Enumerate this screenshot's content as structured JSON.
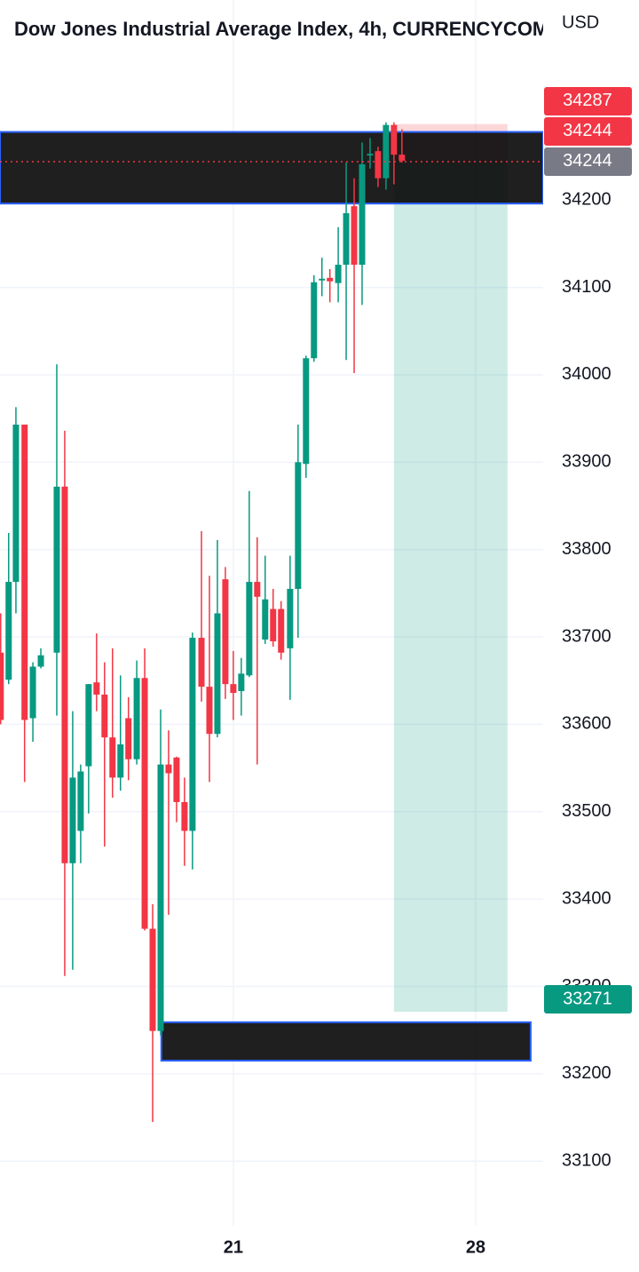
{
  "chart_data": {
    "type": "candlestick",
    "title": "Dow Jones Industrial Average Index, 4h, CURRENCYCOM",
    "currency": "USD",
    "x": [
      14.28,
      14.51,
      14.72,
      14.97,
      15.21,
      15.44,
      15.9,
      16.13,
      16.36,
      16.59,
      16.82,
      17.05,
      17.28,
      17.51,
      17.74,
      17.97,
      18.21,
      18.44,
      18.67,
      18.9,
      19.13,
      19.36,
      19.59,
      19.82,
      20.08,
      20.31,
      20.54,
      20.77,
      21,
      21.23,
      21.46,
      21.69,
      21.92,
      22.15,
      22.38,
      22.64,
      22.87,
      23.1,
      23.33,
      23.56,
      23.79,
      24.03,
      24.26,
      24.49,
      24.72,
      24.95,
      25.18,
      25.41,
      25.64,
      25.87
    ],
    "open": [
      33682,
      33651,
      33763,
      33943,
      33607,
      33666,
      33682,
      33872,
      33441,
      33478,
      33552,
      33648,
      33634,
      33585,
      33539,
      33607,
      33560,
      33653,
      33366,
      33249,
      33554,
      33562,
      33511,
      33478,
      33699,
      33643,
      33589,
      33766,
      33646,
      33638,
      33656,
      33763,
      33697,
      33732,
      33732,
      33687,
      33755,
      33898,
      34019,
      34108,
      34111,
      34105,
      34126,
      34193,
      34126,
      34251,
      34256,
      34225,
      34286,
      34252
    ],
    "high": [
      33727,
      33819,
      33963,
      33943,
      33671,
      33687,
      34012,
      33936,
      33615,
      33554,
      33646,
      33704,
      33671,
      33687,
      33656,
      33631,
      33673,
      33687,
      33394,
      33617,
      33593,
      33563,
      33539,
      33705,
      33821,
      33770,
      33811,
      33780,
      33684,
      33676,
      33867,
      33814,
      33793,
      33755,
      33741,
      33793,
      33943,
      34022,
      34114,
      34134,
      34121,
      34169,
      34243,
      34225,
      34266,
      34271,
      34261,
      34289,
      34289,
      34281
    ],
    "low": [
      33600,
      33646,
      33727,
      33534,
      33580,
      33664,
      33610,
      33312,
      33319,
      33441,
      33498,
      33615,
      33460,
      33516,
      33524,
      33536,
      33554,
      33364,
      33145,
      33244,
      33382,
      33488,
      33438,
      33434,
      33626,
      33534,
      33585,
      33629,
      33605,
      33610,
      33654,
      33554,
      33692,
      33689,
      33674,
      33628,
      33699,
      33882,
      34015,
      34090,
      34083,
      34083,
      34017,
      34002,
      34080,
      34236,
      34215,
      34212,
      34218,
      34243
    ],
    "close": [
      33605,
      33763,
      33943,
      33605,
      33666,
      33679,
      33872,
      33441,
      33539,
      33546,
      33646,
      33634,
      33585,
      33539,
      33577,
      33560,
      33653,
      33366,
      33249,
      33554,
      33544,
      33511,
      33478,
      33699,
      33643,
      33589,
      33727,
      33646,
      33636,
      33658,
      33763,
      33746,
      33743,
      33695,
      33682,
      33755,
      33900,
      34019,
      34106,
      34110,
      34107,
      34126,
      34185,
      34126,
      34241,
      34253,
      34225,
      34286,
      34252,
      34245
    ],
    "up_color": "#089981",
    "down_color": "#f23645",
    "xlim": [
      14.26,
      29.95
    ],
    "ylim": [
      33026,
      34429
    ],
    "xticks": [
      21,
      28
    ],
    "yticks": [
      33100,
      33200,
      33300,
      33400,
      33500,
      33600,
      33700,
      33800,
      33900,
      34000,
      34100,
      34200
    ],
    "grid": true,
    "zones": [
      {
        "top": 34278,
        "bottom": 34196,
        "x": [
          14.26,
          29.95
        ]
      },
      {
        "top": 33259,
        "bottom": 33215,
        "x": [
          18.92,
          29.59
        ]
      }
    ],
    "zone_fill": "#000000",
    "zone_border": "#2962ff",
    "position": {
      "stop": 34287,
      "entry": 34244,
      "target": 33271,
      "x": [
        25.64,
        28.92
      ]
    },
    "stop_color": "#f23645",
    "target_color": "#089981",
    "last_price": 34244,
    "last_price_color": "#787b86"
  }
}
